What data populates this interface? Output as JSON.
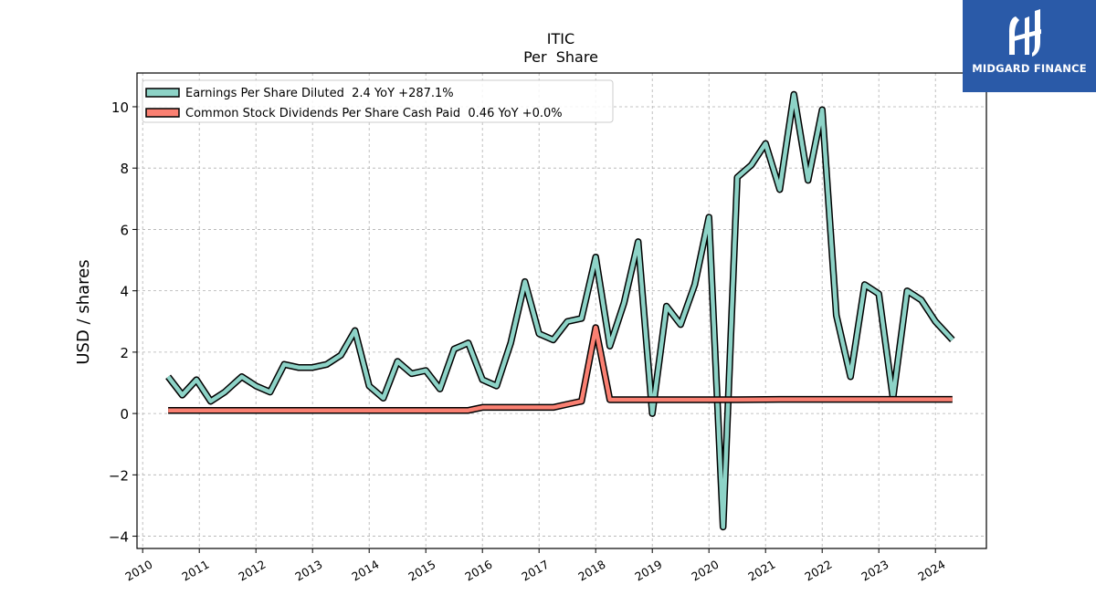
{
  "brand": {
    "name": "MIDGARD FINANCE",
    "bg_color": "#2a5aa8"
  },
  "chart_data": {
    "type": "line",
    "title": "ITIC",
    "subtitle": "Per  Share",
    "ylabel": "USD / shares",
    "xlabel": "",
    "xlim": [
      2009.9,
      2024.9
    ],
    "ylim": [
      -4.4,
      11.1
    ],
    "yticks": [
      -4,
      -2,
      0,
      2,
      4,
      6,
      8,
      10
    ],
    "ytick_labels": [
      "−4",
      "−2",
      "0",
      "2",
      "4",
      "6",
      "8",
      "10"
    ],
    "xticks": [
      2010,
      2011,
      2012,
      2013,
      2014,
      2015,
      2016,
      2017,
      2018,
      2019,
      2020,
      2021,
      2022,
      2023,
      2024
    ],
    "grid": true,
    "legend_position": "top-left",
    "series": [
      {
        "name": "Earnings Per Share Diluted  2.4 YoY +287.1%",
        "color": "#8dd3c7",
        "x": [
          2010.45,
          2010.7,
          2010.95,
          2011.2,
          2011.45,
          2011.75,
          2012.0,
          2012.25,
          2012.5,
          2012.75,
          2013.0,
          2013.25,
          2013.5,
          2013.75,
          2014.0,
          2014.25,
          2014.5,
          2014.75,
          2015.0,
          2015.25,
          2015.5,
          2015.75,
          2016.0,
          2016.25,
          2016.5,
          2016.75,
          2017.0,
          2017.25,
          2017.5,
          2017.75,
          2018.0,
          2018.25,
          2018.5,
          2018.75,
          2019.0,
          2019.25,
          2019.5,
          2019.75,
          2020.0,
          2020.25,
          2020.5,
          2020.75,
          2021.0,
          2021.25,
          2021.5,
          2021.75,
          2022.0,
          2022.25,
          2022.5,
          2022.75,
          2023.0,
          2023.25,
          2023.5,
          2023.75,
          2024.0,
          2024.3
        ],
        "values": [
          1.2,
          0.6,
          1.1,
          0.4,
          0.7,
          1.2,
          0.9,
          0.7,
          1.6,
          1.5,
          1.5,
          1.6,
          1.9,
          2.7,
          0.9,
          0.5,
          1.7,
          1.3,
          1.4,
          0.8,
          2.1,
          2.3,
          1.1,
          0.9,
          2.3,
          4.3,
          2.6,
          2.4,
          3.0,
          3.1,
          5.1,
          2.2,
          3.6,
          5.6,
          0.0,
          3.5,
          2.9,
          4.2,
          6.4,
          -3.7,
          7.7,
          8.1,
          8.8,
          7.3,
          10.4,
          7.6,
          9.9,
          3.2,
          1.2,
          4.2,
          3.9,
          0.5,
          4.0,
          3.7,
          3.0,
          2.4
        ]
      },
      {
        "name": "Common Stock Dividends Per Share Cash Paid  0.46 YoY +0.0%",
        "color": "#fa8072",
        "x": [
          2010.45,
          2012.75,
          2015.75,
          2016.0,
          2016.5,
          2016.75,
          2017.25,
          2017.5,
          2017.75,
          2018.0,
          2018.25,
          2020.25,
          2020.5,
          2021.25,
          2021.5,
          2024.3
        ],
        "values": [
          0.1,
          0.1,
          0.1,
          0.2,
          0.2,
          0.2,
          0.2,
          0.3,
          0.4,
          2.8,
          0.45,
          0.45,
          0.45,
          0.46,
          0.46,
          0.46
        ]
      }
    ]
  }
}
